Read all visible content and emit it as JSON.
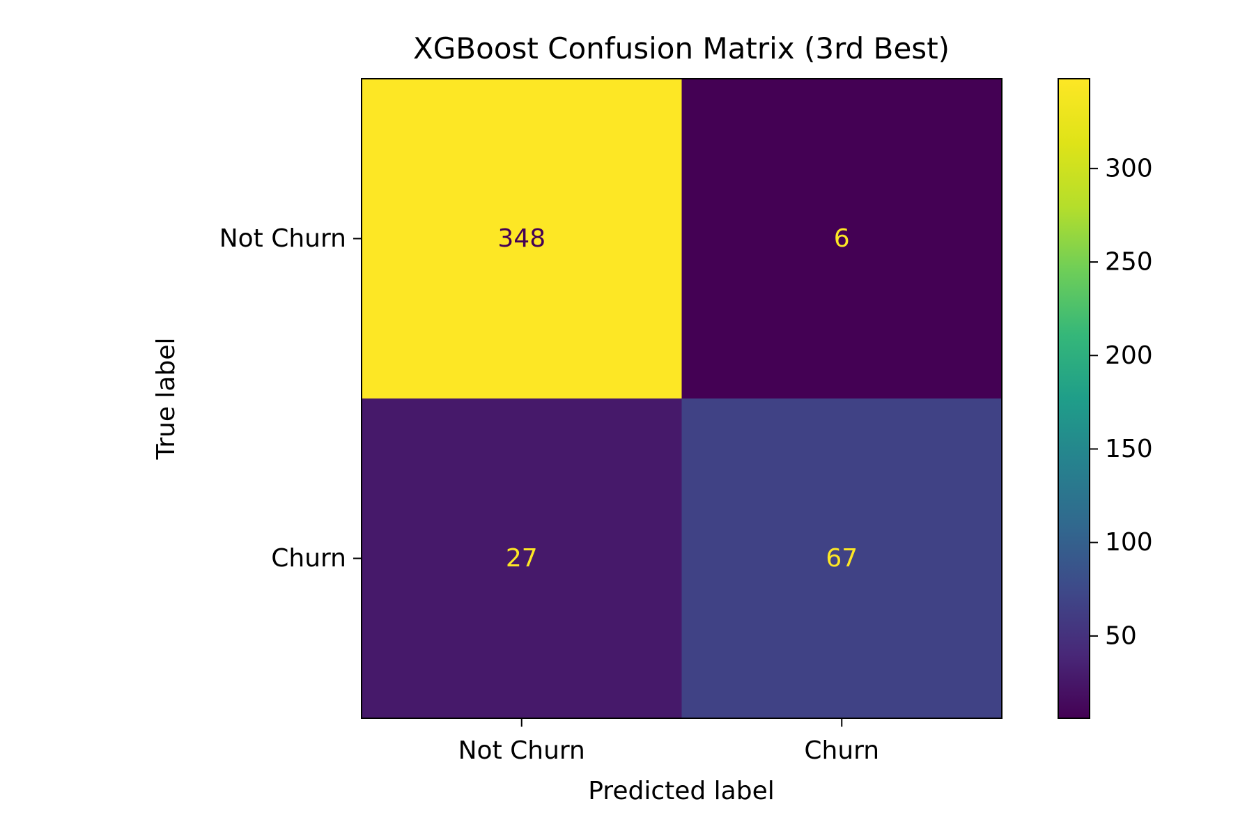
{
  "chart_data": {
    "type": "heatmap",
    "title": "XGBoost Confusion Matrix (3rd Best)",
    "xlabel": "Predicted label",
    "ylabel": "True label",
    "x_categories": [
      "Not Churn",
      "Churn"
    ],
    "y_categories": [
      "Not Churn",
      "Churn"
    ],
    "values": [
      [
        348,
        6
      ],
      [
        27,
        67
      ]
    ],
    "colormap": "viridis",
    "colorbar": {
      "range": [
        6,
        348
      ],
      "ticks": [
        50,
        100,
        150,
        200,
        250,
        300
      ]
    },
    "colors": {
      "cell_text_dark": "#440154",
      "cell_text_light": "#fde725"
    }
  }
}
